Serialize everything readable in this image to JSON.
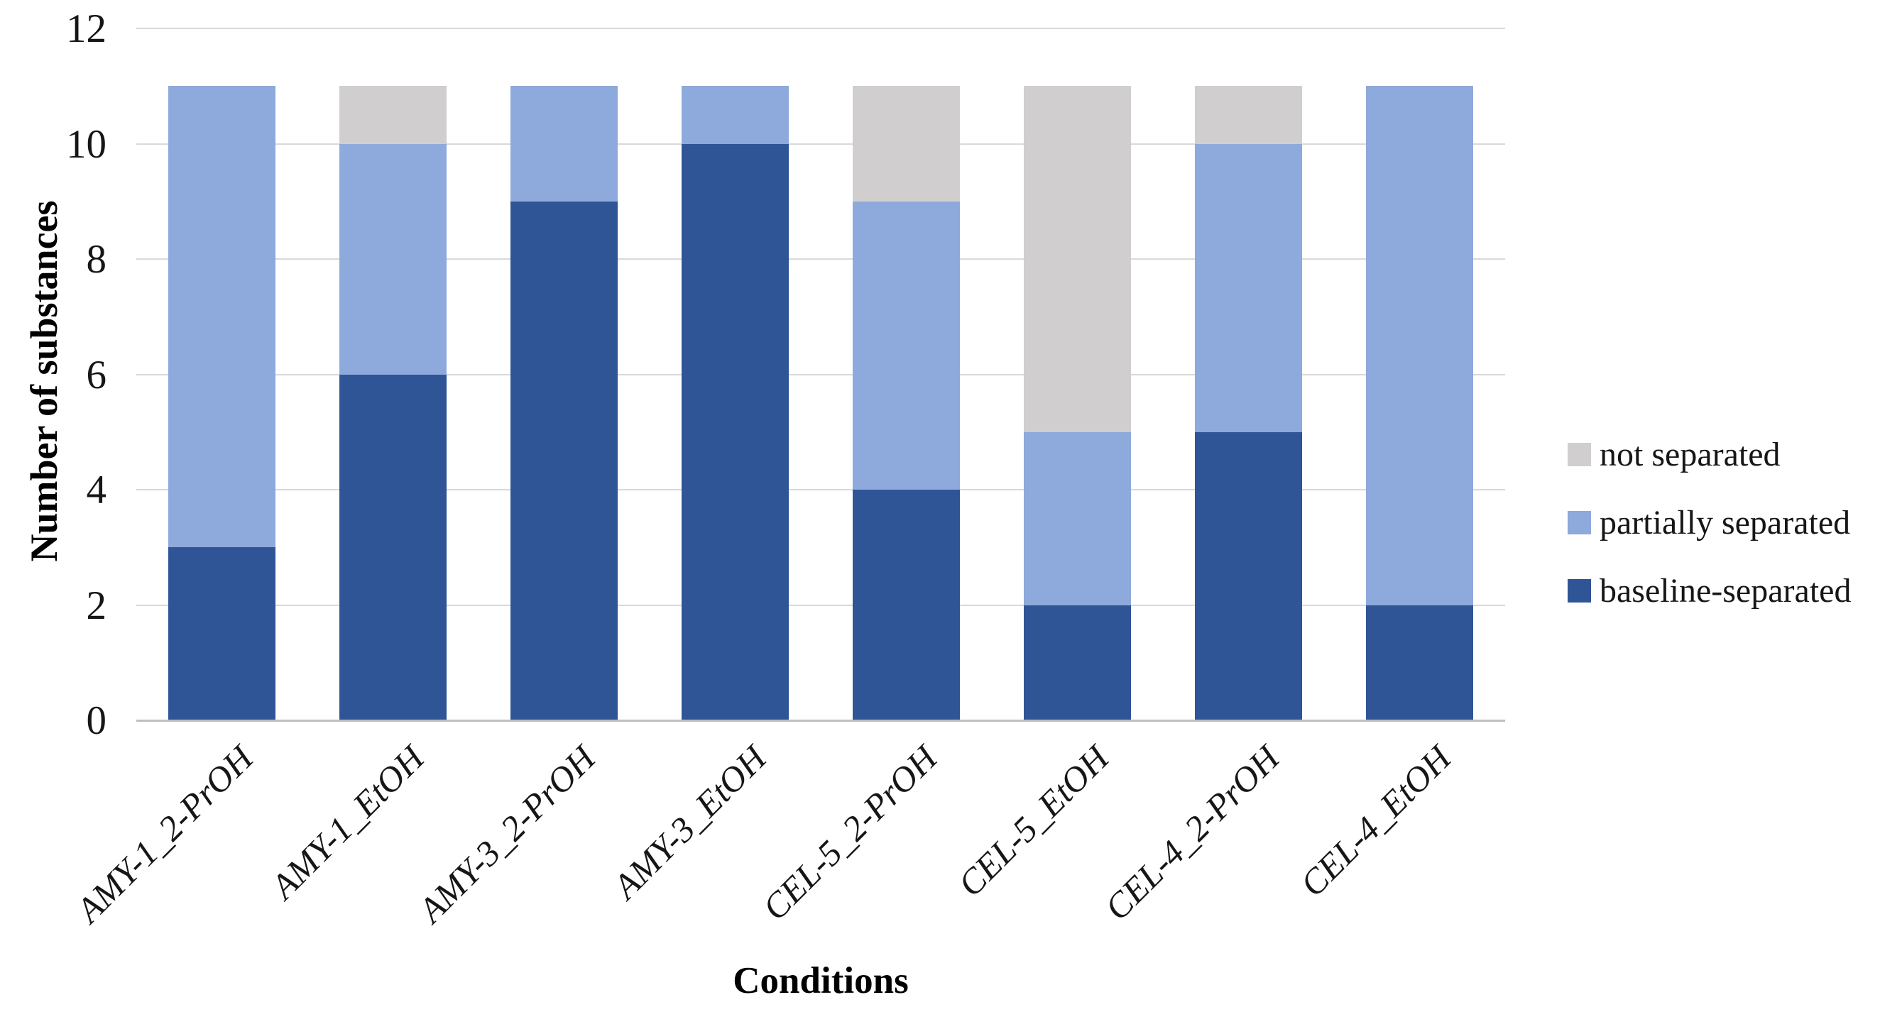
{
  "figure": {
    "y_axis_title": "Number of substances",
    "x_axis_title": "Conditions"
  },
  "colors": {
    "baseline_separated": "#2F5597",
    "partially_separated": "#8EA9DB",
    "not_separated": "#D0CECE",
    "gridline": "#D9D9D9",
    "axis_line": "#BFBFBF",
    "text": "#161616"
  },
  "chart_data": {
    "type": "bar",
    "stacked": true,
    "title": "",
    "xlabel": "Conditions",
    "ylabel": "Number of substances",
    "ylim": [
      0,
      12
    ],
    "yticks": [
      0,
      2,
      4,
      6,
      8,
      10,
      12
    ],
    "grid": true,
    "legend_position": "right",
    "categories": [
      "AMY-1_2-PrOH",
      "AMY-1_EtOH",
      "AMY-3_2-PrOH",
      "AMY-3_EtOH",
      "CEL-5_2-PrOH",
      "CEL-5_EtOH",
      "CEL-4_2-PrOH",
      "CEL-4_EtOH"
    ],
    "series": [
      {
        "name": "baseline-separated",
        "color": "#2F5597",
        "values": [
          3,
          6,
          9,
          10,
          4,
          2,
          5,
          2
        ]
      },
      {
        "name": "partially separated",
        "color": "#8EA9DB",
        "values": [
          8,
          4,
          2,
          1,
          5,
          3,
          5,
          9
        ]
      },
      {
        "name": "not separated",
        "color": "#D0CECE",
        "values": [
          0,
          1,
          0,
          0,
          2,
          6,
          1,
          0
        ]
      }
    ],
    "totals": [
      11,
      11,
      11,
      11,
      11,
      11,
      11,
      11
    ],
    "legend_order_top_to_bottom": [
      "not separated",
      "partially separated",
      "baseline-separated"
    ]
  }
}
